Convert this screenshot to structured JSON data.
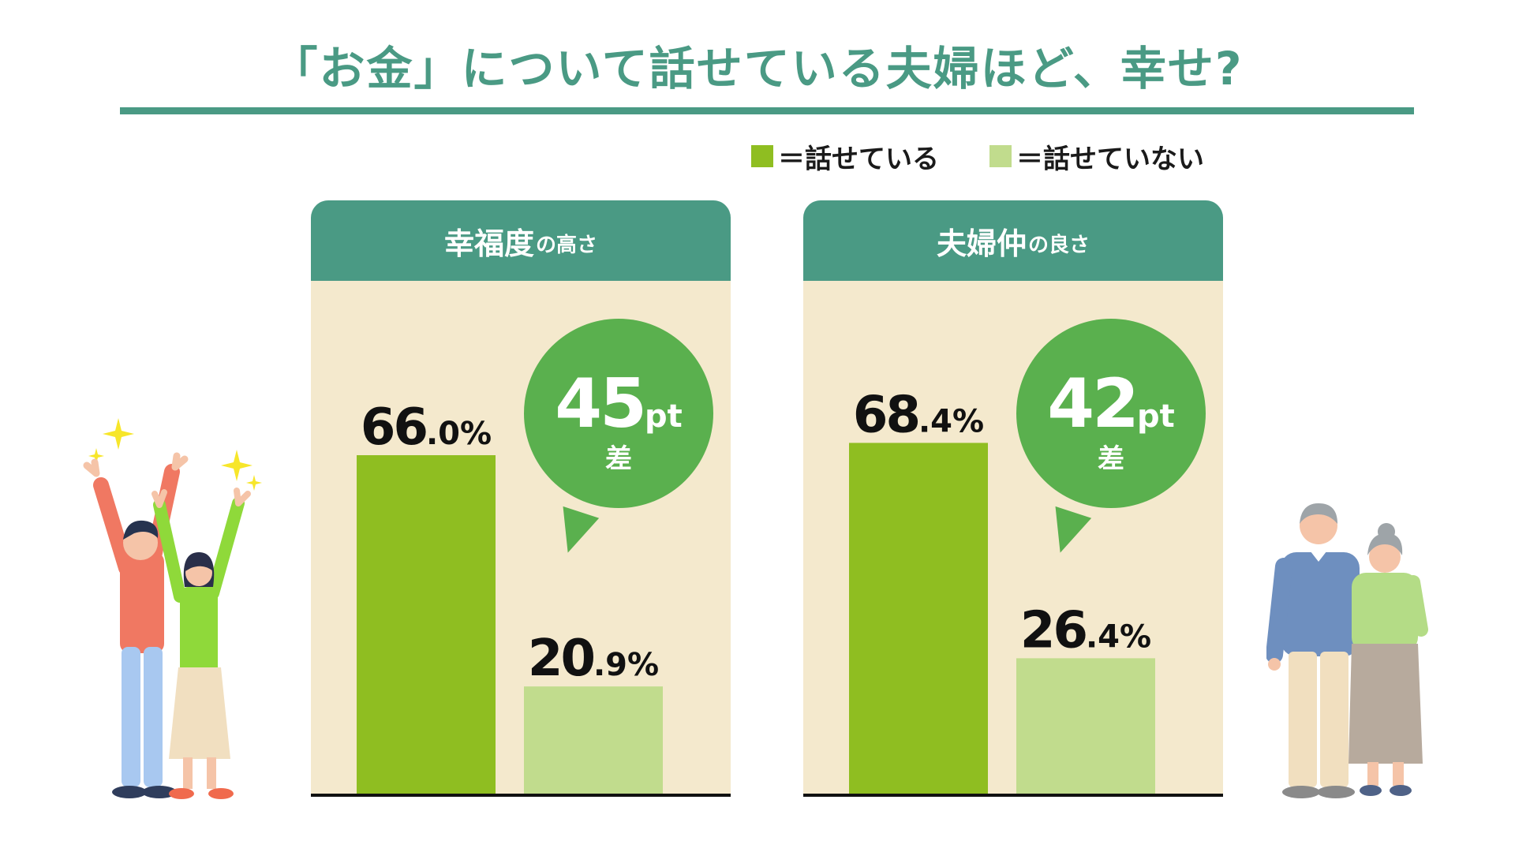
{
  "title": "「お金」について話せている夫婦ほど、幸せ?",
  "legend": [
    {
      "label": "＝話せている",
      "color": "#8fbe21"
    },
    {
      "label": "＝話せていない",
      "color": "#c1dc8d"
    }
  ],
  "colors": {
    "accent": "#4a9a84",
    "panel_bg": "#f4e9cd",
    "talk": "#8fbe21",
    "no_talk": "#c1dc8d",
    "bubble": "#5ab04e"
  },
  "panels": [
    {
      "title_main": "幸福度",
      "title_sub": "の高さ",
      "diff_value": "45",
      "diff_unit": "pt",
      "diff_label": "差"
    },
    {
      "title_main": "夫婦仲",
      "title_sub": "の良さ",
      "diff_value": "42",
      "diff_unit": "pt",
      "diff_label": "差"
    }
  ],
  "chart_data": [
    {
      "type": "bar",
      "title": "幸福度の高さ",
      "categories": [
        "話せている",
        "話せていない"
      ],
      "values": [
        66.0,
        20.9
      ],
      "value_labels": [
        {
          "int": "66",
          "dec": ".0%"
        },
        {
          "int": "20",
          "dec": ".9%"
        }
      ],
      "ylim": [
        0,
        100
      ]
    },
    {
      "type": "bar",
      "title": "夫婦仲の良さ",
      "categories": [
        "話せている",
        "話せていない"
      ],
      "values": [
        68.4,
        26.4
      ],
      "value_labels": [
        {
          "int": "68",
          "dec": ".4%"
        },
        {
          "int": "26",
          "dec": ".4%"
        }
      ],
      "ylim": [
        0,
        100
      ]
    }
  ]
}
